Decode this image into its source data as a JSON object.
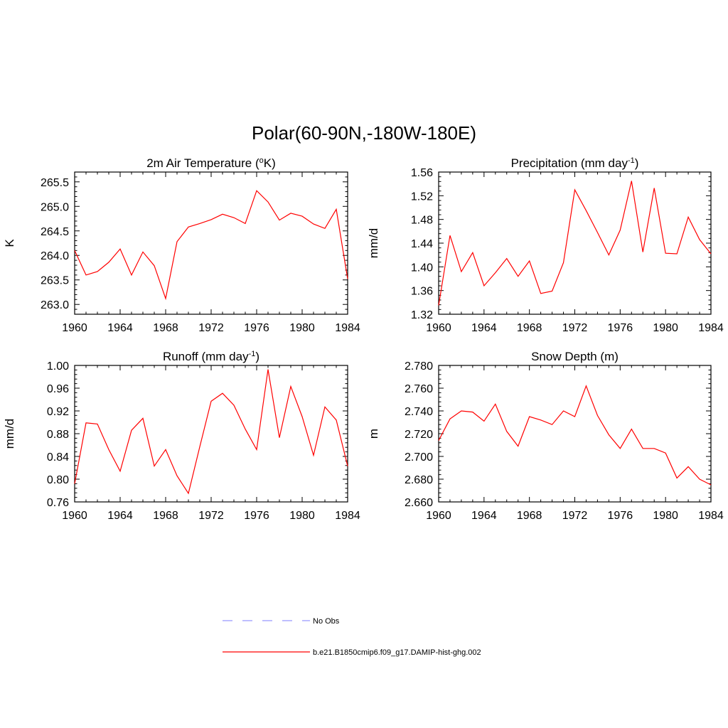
{
  "title": "Polar(60-90N,-180W-180E)",
  "colors": {
    "model_line": "#ff0000",
    "obs_line": "#9999ff",
    "frame": "#000000"
  },
  "legend": {
    "items": [
      {
        "label": "No Obs",
        "style": "dashed",
        "color": "#9999ff"
      },
      {
        "label": "b.e21.B1850cmip6.f09_g17.DAMIP-hist-ghg.002",
        "style": "solid",
        "color": "#ff0000"
      }
    ]
  },
  "chart_data": [
    {
      "type": "line",
      "title_main": "2m Air Temperature (",
      "title_sup": "o",
      "title_end": "K)",
      "ylabel": "K",
      "xlim": [
        1960,
        1984
      ],
      "ylim": [
        262.8,
        265.7
      ],
      "xticks": [
        1960,
        1964,
        1968,
        1972,
        1976,
        1980,
        1984
      ],
      "yticks": [
        263.0,
        263.5,
        264.0,
        264.5,
        265.0,
        265.5
      ],
      "ytick_labels": [
        "263.0",
        "263.5",
        "264.0",
        "264.5",
        "265.0",
        "265.5"
      ],
      "x": [
        1960,
        1961,
        1962,
        1963,
        1964,
        1965,
        1966,
        1967,
        1968,
        1969,
        1970,
        1971,
        1972,
        1973,
        1974,
        1975,
        1976,
        1977,
        1978,
        1979,
        1980,
        1981,
        1982,
        1983,
        1984
      ],
      "series": [
        {
          "values": [
            264.1,
            263.6,
            263.67,
            263.86,
            264.13,
            263.6,
            264.07,
            263.79,
            263.12,
            264.28,
            264.58,
            264.65,
            264.73,
            264.84,
            264.77,
            264.65,
            265.32,
            265.09,
            264.72,
            264.86,
            264.8,
            264.64,
            264.55,
            264.94,
            263.52
          ]
        }
      ]
    },
    {
      "type": "line",
      "title_main": "Precipitation (mm day",
      "title_sup": "-1",
      "title_end": ")",
      "ylabel": "mm/d",
      "xlim": [
        1960,
        1984
      ],
      "ylim": [
        1.32,
        1.56
      ],
      "xticks": [
        1960,
        1964,
        1968,
        1972,
        1976,
        1980,
        1984
      ],
      "yticks": [
        1.32,
        1.36,
        1.4,
        1.44,
        1.48,
        1.52,
        1.56
      ],
      "ytick_labels": [
        "1.32",
        "1.36",
        "1.40",
        "1.44",
        "1.48",
        "1.52",
        "1.56"
      ],
      "x": [
        1960,
        1961,
        1962,
        1963,
        1964,
        1965,
        1966,
        1967,
        1968,
        1969,
        1970,
        1971,
        1972,
        1973,
        1974,
        1975,
        1976,
        1977,
        1978,
        1979,
        1980,
        1981,
        1982,
        1983,
        1984
      ],
      "series": [
        {
          "values": [
            1.335,
            1.453,
            1.392,
            1.424,
            1.368,
            1.39,
            1.414,
            1.384,
            1.41,
            1.355,
            1.359,
            1.407,
            1.53,
            1.495,
            1.458,
            1.42,
            1.462,
            1.545,
            1.425,
            1.533,
            1.423,
            1.422,
            1.484,
            1.446,
            1.422
          ]
        }
      ]
    },
    {
      "type": "line",
      "title_main": "Runoff (mm day",
      "title_sup": "-1",
      "title_end": ")",
      "ylabel": "mm/d",
      "xlim": [
        1960,
        1984
      ],
      "ylim": [
        0.76,
        1.0
      ],
      "xticks": [
        1960,
        1964,
        1968,
        1972,
        1976,
        1980,
        1984
      ],
      "yticks": [
        0.76,
        0.8,
        0.84,
        0.88,
        0.92,
        0.96,
        1.0
      ],
      "ytick_labels": [
        "0.76",
        "0.80",
        "0.84",
        "0.88",
        "0.92",
        "0.96",
        "1.00"
      ],
      "x": [
        1960,
        1961,
        1962,
        1963,
        1964,
        1965,
        1966,
        1967,
        1968,
        1969,
        1970,
        1971,
        1972,
        1973,
        1974,
        1975,
        1976,
        1977,
        1978,
        1979,
        1980,
        1981,
        1982,
        1983,
        1984
      ],
      "series": [
        {
          "values": [
            0.792,
            0.899,
            0.897,
            0.852,
            0.814,
            0.886,
            0.907,
            0.823,
            0.852,
            0.806,
            0.775,
            0.857,
            0.937,
            0.951,
            0.93,
            0.888,
            0.852,
            0.993,
            0.873,
            0.963,
            0.91,
            0.842,
            0.927,
            0.904,
            0.823
          ]
        }
      ]
    },
    {
      "type": "line",
      "title_main": "Snow Depth (m)",
      "title_sup": "",
      "title_end": "",
      "ylabel": "m",
      "xlim": [
        1960,
        1984
      ],
      "ylim": [
        2.66,
        2.78
      ],
      "xticks": [
        1960,
        1964,
        1968,
        1972,
        1976,
        1980,
        1984
      ],
      "yticks": [
        2.66,
        2.68,
        2.7,
        2.72,
        2.74,
        2.76,
        2.78
      ],
      "ytick_labels": [
        "2.660",
        "2.680",
        "2.700",
        "2.720",
        "2.740",
        "2.760",
        "2.780"
      ],
      "x": [
        1960,
        1961,
        1962,
        1963,
        1964,
        1965,
        1966,
        1967,
        1968,
        1969,
        1970,
        1971,
        1972,
        1973,
        1974,
        1975,
        1976,
        1977,
        1978,
        1979,
        1980,
        1981,
        1982,
        1983,
        1984
      ],
      "series": [
        {
          "values": [
            2.714,
            2.733,
            2.74,
            2.739,
            2.731,
            2.746,
            2.722,
            2.709,
            2.735,
            2.732,
            2.728,
            2.74,
            2.735,
            2.762,
            2.736,
            2.719,
            2.707,
            2.724,
            2.707,
            2.707,
            2.703,
            2.681,
            2.691,
            2.68,
            2.675
          ]
        }
      ]
    }
  ]
}
